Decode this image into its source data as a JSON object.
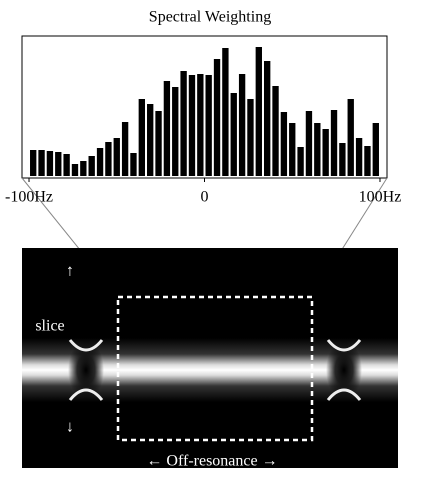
{
  "chart_data": {
    "type": "histogram",
    "title": "Spectral Weighting",
    "bins": [
      -100,
      -95.24,
      -90.48,
      -85.71,
      -80.95,
      -76.19,
      -71.43,
      -66.67,
      -61.9,
      -57.14,
      -52.38,
      -47.62,
      -42.86,
      -38.1,
      -33.33,
      -28.57,
      -23.81,
      -19.05,
      -14.29,
      -9.52,
      -4.76,
      0,
      4.76,
      9.52,
      14.29,
      19.05,
      23.81,
      28.57,
      33.33,
      38.1,
      42.86,
      47.62,
      52.38,
      57.14,
      61.9,
      66.67,
      71.43,
      76.19,
      80.95,
      85.71,
      90.48,
      95.24,
      100
    ],
    "values": [
      26,
      26,
      25,
      24,
      22,
      12,
      15,
      20,
      28,
      34,
      38,
      54,
      23,
      77,
      72,
      65,
      95,
      89,
      105,
      101,
      102,
      101,
      117,
      128,
      83,
      102,
      77,
      129,
      115,
      90,
      64,
      53,
      29,
      65,
      53,
      47,
      66,
      33,
      77,
      38,
      30,
      53
    ],
    "color": "#000000",
    "xlim": [
      -104,
      104
    ],
    "ylim": [
      0,
      140
    ],
    "xticks": [
      {
        "value": -100,
        "label": "-100Hz"
      },
      0,
      {
        "value": 100,
        "label": "100Hz"
      }
    ],
    "annotations": [
      "slice",
      "↑",
      "↓",
      "← Off-resonance →"
    ]
  }
}
